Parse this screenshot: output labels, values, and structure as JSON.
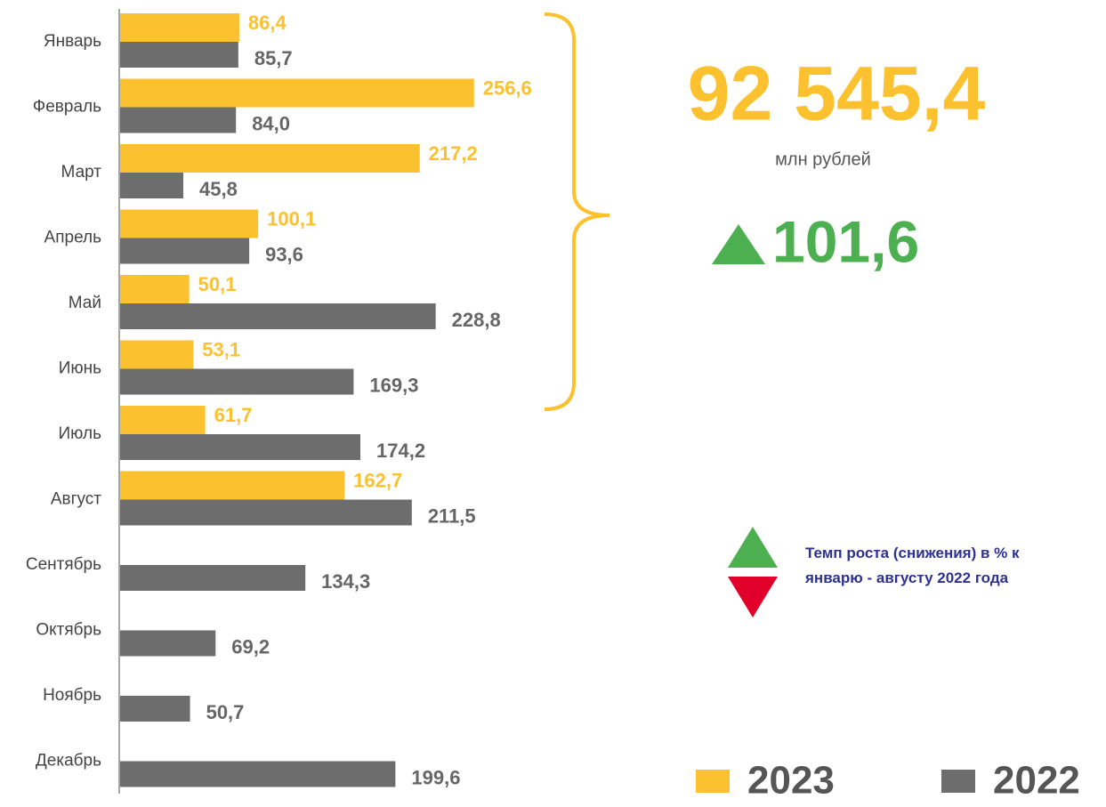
{
  "chart_data": {
    "type": "bar",
    "orientation": "horizontal",
    "categories": [
      "Январь",
      "Февраль",
      "Март",
      "Апрель",
      "Май",
      "Июнь",
      "Июль",
      "Август",
      "Сентябрь",
      "Октябрь",
      "Ноябрь",
      "Декабрь"
    ],
    "series": [
      {
        "name": "2023",
        "color": "#fbc12e",
        "values": [
          86.4,
          256.6,
          217.2,
          100.1,
          50.1,
          53.1,
          61.7,
          162.7,
          null,
          null,
          null,
          null
        ],
        "value_labels": [
          "86,4",
          "256,6",
          "217,2",
          "100,1",
          "50,1",
          "53,1",
          "61,7",
          "162,7",
          null,
          null,
          null,
          null
        ]
      },
      {
        "name": "2022",
        "color": "#6d6d6d",
        "values": [
          85.7,
          84.0,
          45.8,
          93.6,
          228.8,
          169.3,
          174.2,
          211.5,
          134.3,
          69.2,
          50.7,
          199.6
        ],
        "value_labels": [
          "85,7",
          "84,0",
          "45,8",
          "93,6",
          "228,8",
          "169,3",
          "174,2",
          "211,5",
          "134,3",
          "69,2",
          "50,7",
          "199,6"
        ]
      }
    ],
    "xlim": [
      0,
      700
    ]
  },
  "summary": {
    "total": "92 545,4",
    "unit": "млн рублей",
    "growth": "101,6",
    "note": [
      "Темп роста (снижения) в % к январю - августу 2022 года"
    ]
  }
}
